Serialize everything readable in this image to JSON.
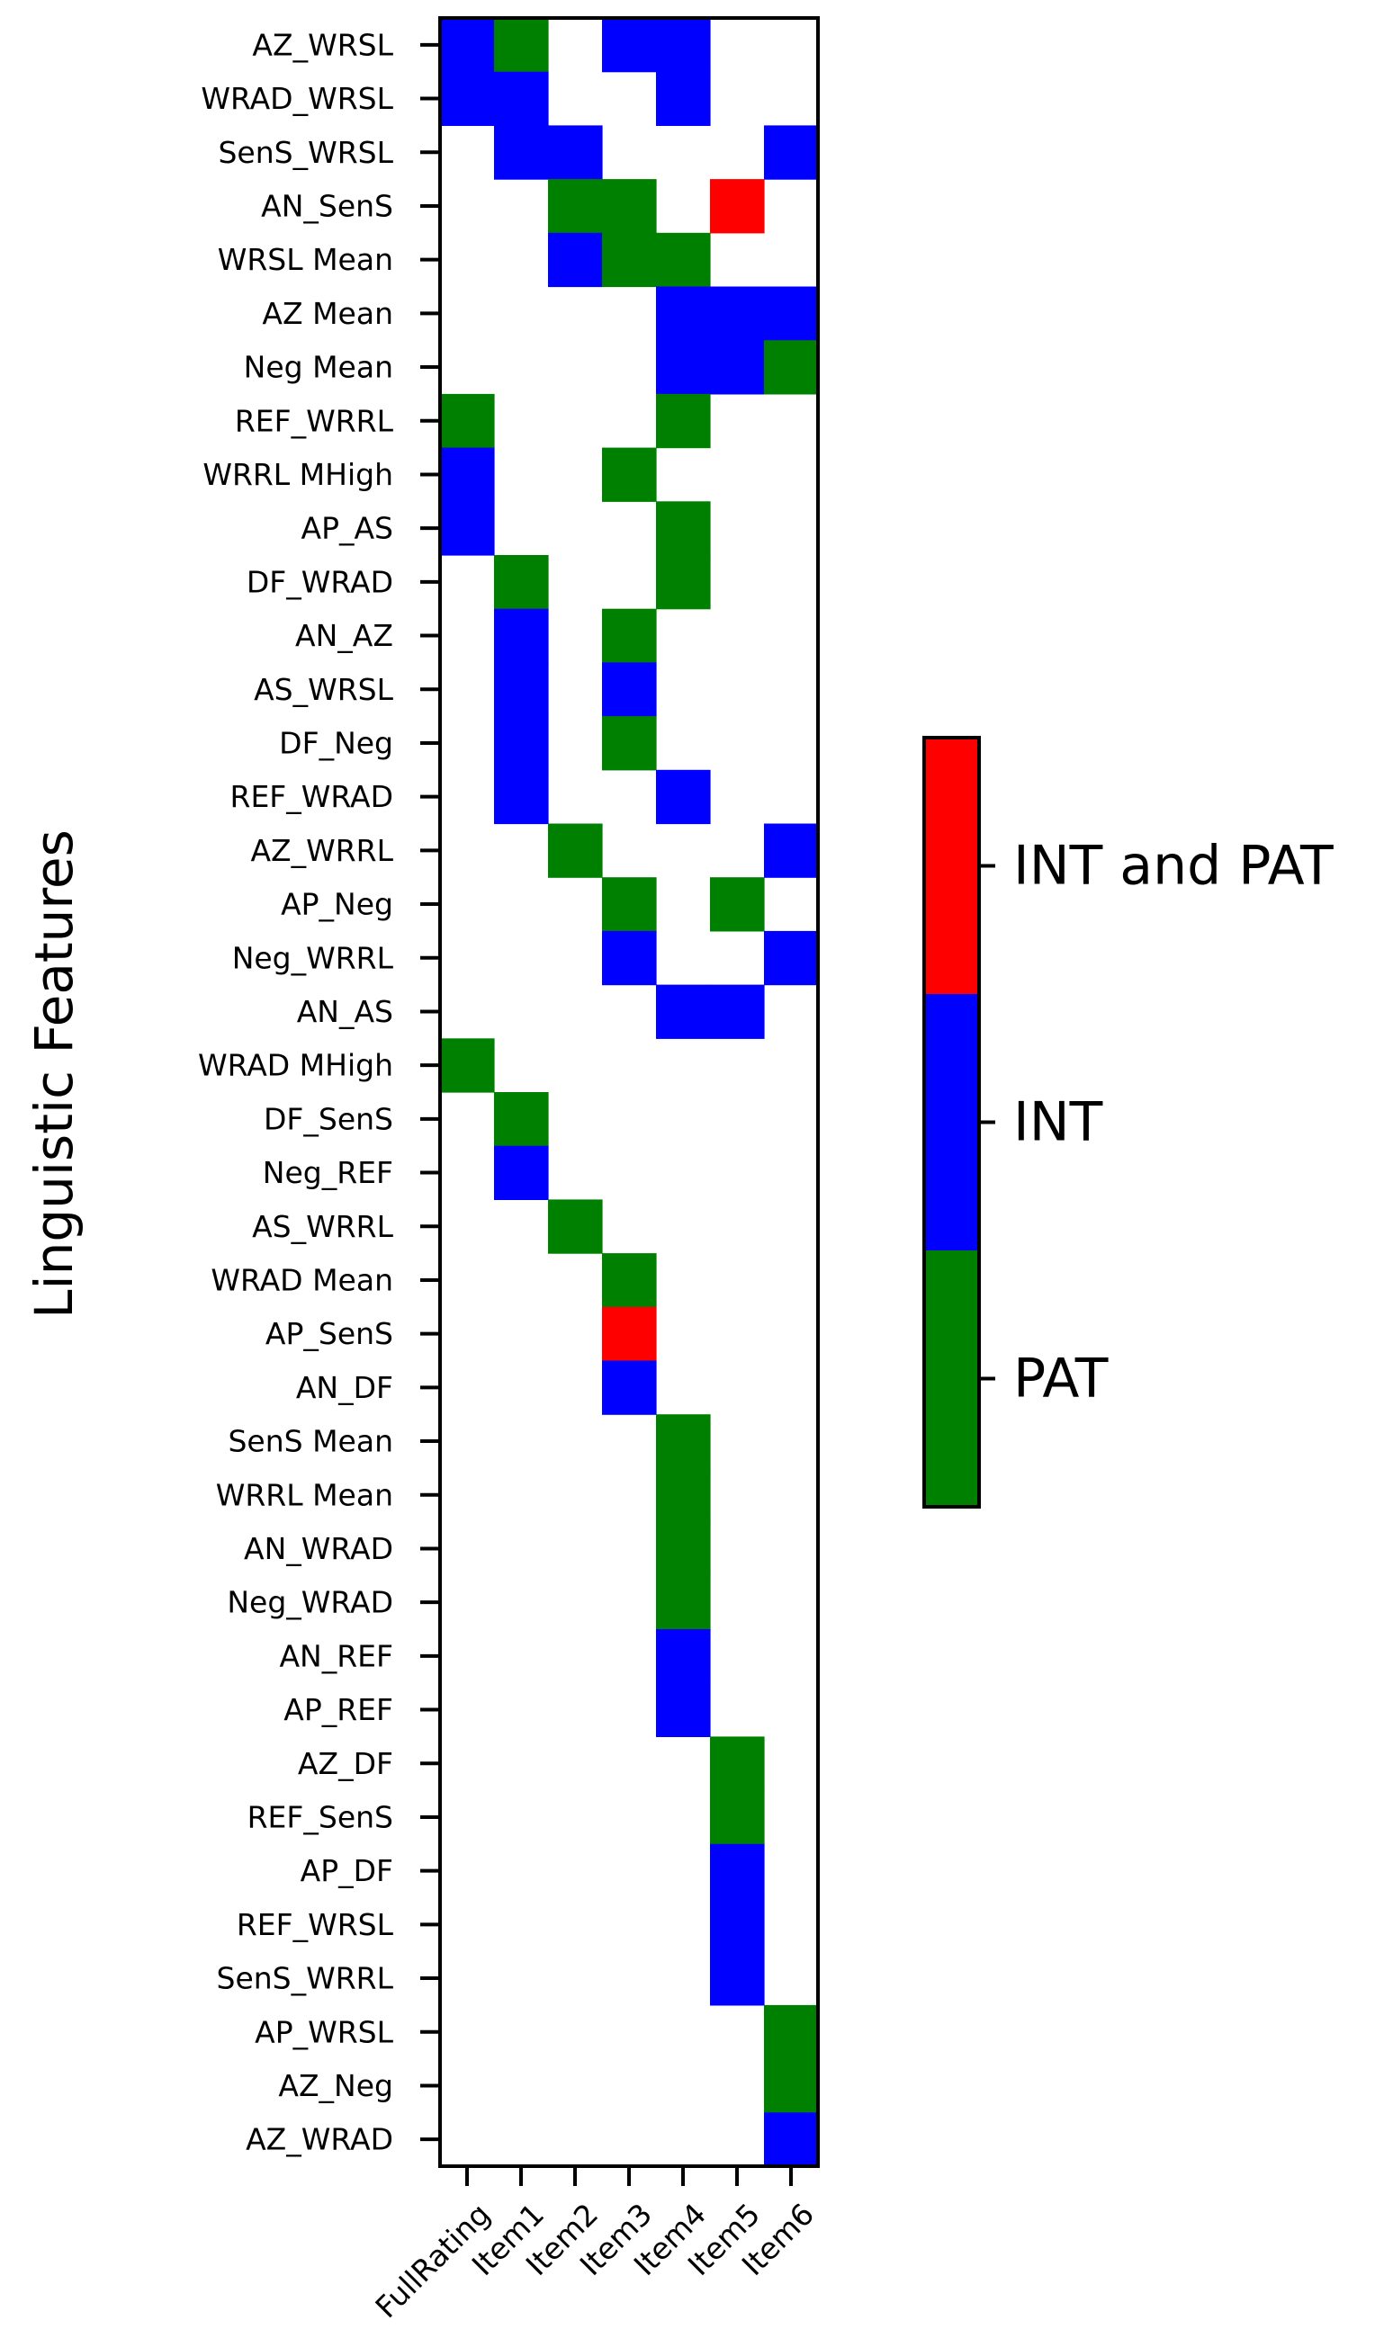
{
  "chart_data": {
    "type": "heatmap",
    "ylabel": "Linguistic Features",
    "xlabel": "",
    "columns": [
      "FullRating",
      "Item1",
      "Item2",
      "Item3",
      "Item4",
      "Item5",
      "Item6"
    ],
    "rows": [
      "AZ_WRSL",
      "WRAD_WRSL",
      "SenS_WRSL",
      "AN_SenS",
      "WRSL Mean",
      "AZ Mean",
      "Neg Mean",
      "REF_WRRL",
      "WRRL MHigh",
      "AP_AS",
      "DF_WRAD",
      "AN_AZ",
      "AS_WRSL",
      "DF_Neg",
      "REF_WRAD",
      "AZ_WRRL",
      "AP_Neg",
      "Neg_WRRL",
      "AN_AS",
      "WRAD MHigh",
      "DF_SenS",
      "Neg_REF",
      "AS_WRRL",
      "WRAD Mean",
      "AP_SenS",
      "AN_DF",
      "SenS Mean",
      "WRRL Mean",
      "AN_WRAD",
      "Neg_WRAD",
      "AN_REF",
      "AP_REF",
      "AZ_DF",
      "REF_SenS",
      "AP_DF",
      "REF_WRSL",
      "SenS_WRRL",
      "AP_WRSL",
      "AZ_Neg",
      "AZ_WRAD"
    ],
    "values": [
      [
        2,
        1,
        0,
        2,
        2,
        0,
        0
      ],
      [
        2,
        2,
        0,
        0,
        2,
        0,
        0
      ],
      [
        0,
        2,
        2,
        0,
        0,
        0,
        2
      ],
      [
        0,
        0,
        1,
        1,
        0,
        3,
        0
      ],
      [
        0,
        0,
        2,
        1,
        1,
        0,
        0
      ],
      [
        0,
        0,
        0,
        0,
        2,
        2,
        2
      ],
      [
        0,
        0,
        0,
        0,
        2,
        2,
        1
      ],
      [
        1,
        0,
        0,
        0,
        1,
        0,
        0
      ],
      [
        2,
        0,
        0,
        1,
        0,
        0,
        0
      ],
      [
        2,
        0,
        0,
        0,
        1,
        0,
        0
      ],
      [
        0,
        1,
        0,
        0,
        1,
        0,
        0
      ],
      [
        0,
        2,
        0,
        1,
        0,
        0,
        0
      ],
      [
        0,
        2,
        0,
        2,
        0,
        0,
        0
      ],
      [
        0,
        2,
        0,
        1,
        0,
        0,
        0
      ],
      [
        0,
        2,
        0,
        0,
        2,
        0,
        0
      ],
      [
        0,
        0,
        1,
        0,
        0,
        0,
        2
      ],
      [
        0,
        0,
        0,
        1,
        0,
        1,
        0
      ],
      [
        0,
        0,
        0,
        2,
        0,
        0,
        2
      ],
      [
        0,
        0,
        0,
        0,
        2,
        2,
        0
      ],
      [
        1,
        0,
        0,
        0,
        0,
        0,
        0
      ],
      [
        0,
        1,
        0,
        0,
        0,
        0,
        0
      ],
      [
        0,
        2,
        0,
        0,
        0,
        0,
        0
      ],
      [
        0,
        0,
        1,
        0,
        0,
        0,
        0
      ],
      [
        0,
        0,
        0,
        1,
        0,
        0,
        0
      ],
      [
        0,
        0,
        0,
        3,
        0,
        0,
        0
      ],
      [
        0,
        0,
        0,
        2,
        0,
        0,
        0
      ],
      [
        0,
        0,
        0,
        0,
        1,
        0,
        0
      ],
      [
        0,
        0,
        0,
        0,
        1,
        0,
        0
      ],
      [
        0,
        0,
        0,
        0,
        1,
        0,
        0
      ],
      [
        0,
        0,
        0,
        0,
        1,
        0,
        0
      ],
      [
        0,
        0,
        0,
        0,
        2,
        0,
        0
      ],
      [
        0,
        0,
        0,
        0,
        2,
        0,
        0
      ],
      [
        0,
        0,
        0,
        0,
        0,
        1,
        0
      ],
      [
        0,
        0,
        0,
        0,
        0,
        1,
        0
      ],
      [
        0,
        0,
        0,
        0,
        0,
        2,
        0
      ],
      [
        0,
        0,
        0,
        0,
        0,
        2,
        0
      ],
      [
        0,
        0,
        0,
        0,
        0,
        2,
        0
      ],
      [
        0,
        0,
        0,
        0,
        0,
        0,
        1
      ],
      [
        0,
        0,
        0,
        0,
        0,
        0,
        1
      ],
      [
        0,
        0,
        0,
        0,
        0,
        0,
        2
      ]
    ],
    "categories": [
      {
        "value": 0,
        "label": "",
        "color": "#ffffff"
      },
      {
        "value": 1,
        "label": "PAT",
        "color": "#008000"
      },
      {
        "value": 2,
        "label": "INT",
        "color": "#0000ff"
      },
      {
        "value": 3,
        "label": "INT and PAT",
        "color": "#ff0000"
      }
    ],
    "legend": "right",
    "grid": false
  }
}
